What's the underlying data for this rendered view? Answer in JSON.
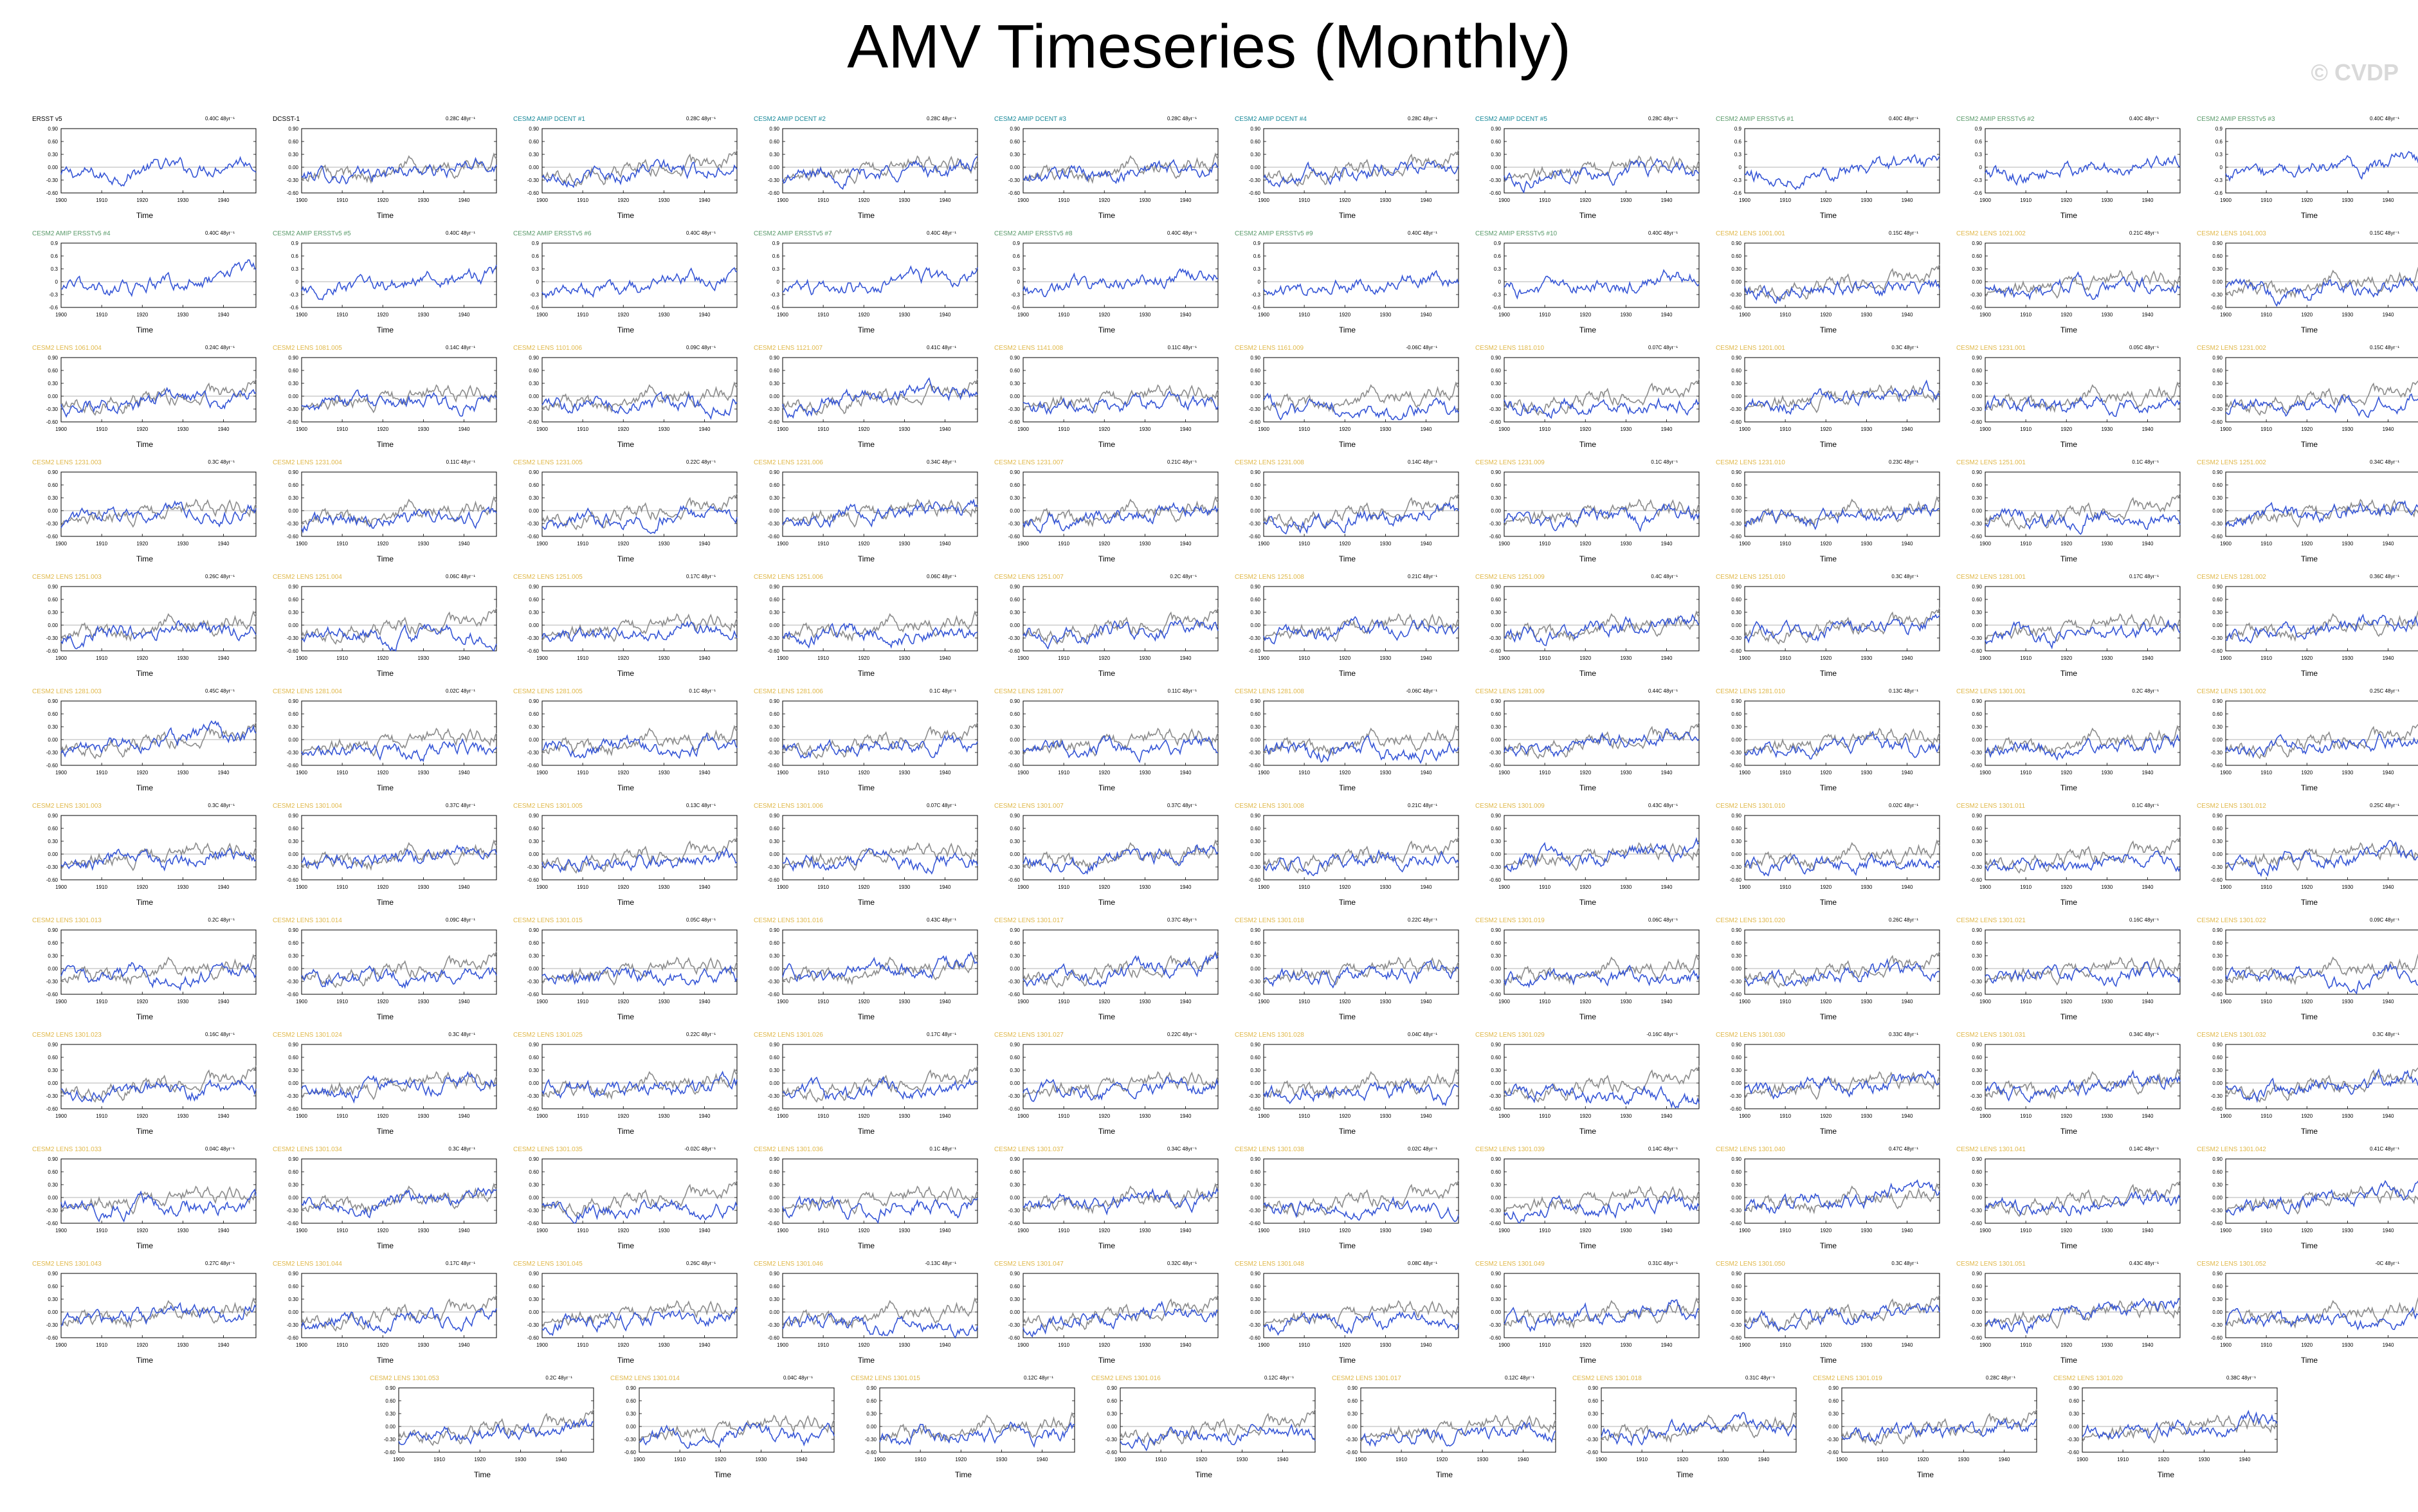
{
  "header": {
    "title": "AMV Timeseries (Monthly)",
    "watermark": "© CVDP"
  },
  "chart_data": {
    "type": "line",
    "xlabel": "Time",
    "x_ticks": [
      "1900",
      "1910",
      "1920",
      "1930",
      "1940"
    ],
    "xlim": [
      1900,
      1948
    ],
    "ylim": [
      -0.6,
      0.9
    ],
    "y_ticks": [
      "0.90",
      "0.60",
      "0.30",
      "0.00",
      "-0.30",
      "-0.60"
    ],
    "y_ticks_alt": [
      "0.9",
      "0.6",
      "0.3",
      "0",
      "-0.3",
      "-0.6"
    ],
    "series_colors": {
      "model": "#3656d6",
      "observed": "#8c8c8c",
      "zero_line": "#9a9a9a"
    },
    "title_colors": {
      "obs": "#000000",
      "dcent": "#1a8a9a",
      "ersst": "#5a9a6a",
      "lens": "#e0b84a"
    },
    "panels": [
      {
        "title": "ERSST v5",
        "stat": "0.40C 48yr⁻¹",
        "kind": "obs",
        "trend": 0.4,
        "overlay": false
      },
      {
        "title": "DCSST-1",
        "stat": "0.28C 48yr⁻¹",
        "kind": "obs",
        "trend": 0.28,
        "overlay": true
      },
      {
        "title": "CESM2 AMIP DCENT #1",
        "stat": "0.28C 48yr⁻¹",
        "kind": "dcent",
        "trend": 0.28,
        "overlay": true
      },
      {
        "title": "CESM2 AMIP DCENT #2",
        "stat": "0.28C 48yr⁻¹",
        "kind": "dcent",
        "trend": 0.28,
        "overlay": true
      },
      {
        "title": "CESM2 AMIP DCENT #3",
        "stat": "0.28C 48yr⁻¹",
        "kind": "dcent",
        "trend": 0.28,
        "overlay": true
      },
      {
        "title": "CESM2 AMIP DCENT #4",
        "stat": "0.28C 48yr⁻¹",
        "kind": "dcent",
        "trend": 0.28,
        "overlay": true
      },
      {
        "title": "CESM2 AMIP DCENT #5",
        "stat": "0.28C 48yr⁻¹",
        "kind": "dcent",
        "trend": 0.28,
        "overlay": true
      },
      {
        "title": "CESM2 AMIP ERSSTv5 #1",
        "stat": "0.40C 48yr⁻¹",
        "kind": "ersst",
        "trend": 0.4,
        "overlay": false
      },
      {
        "title": "CESM2 AMIP ERSSTv5 #2",
        "stat": "0.40C 48yr⁻¹",
        "kind": "ersst",
        "trend": 0.4,
        "overlay": false
      },
      {
        "title": "CESM2 AMIP ERSSTv5 #3",
        "stat": "0.40C 48yr⁻¹",
        "kind": "ersst",
        "trend": 0.4,
        "overlay": false
      },
      {
        "title": "CESM2 AMIP ERSSTv5 #4",
        "stat": "0.40C 48yr⁻¹",
        "kind": "ersst",
        "trend": 0.4,
        "overlay": false
      },
      {
        "title": "CESM2 AMIP ERSSTv5 #5",
        "stat": "0.40C 48yr⁻¹",
        "kind": "ersst",
        "trend": 0.4,
        "overlay": false
      },
      {
        "title": "CESM2 AMIP ERSSTv5 #6",
        "stat": "0.40C 48yr⁻¹",
        "kind": "ersst",
        "trend": 0.4,
        "overlay": false
      },
      {
        "title": "CESM2 AMIP ERSSTv5 #7",
        "stat": "0.40C 48yr⁻¹",
        "kind": "ersst",
        "trend": 0.4,
        "overlay": false
      },
      {
        "title": "CESM2 AMIP ERSSTv5 #8",
        "stat": "0.40C 48yr⁻¹",
        "kind": "ersst",
        "trend": 0.4,
        "overlay": false
      },
      {
        "title": "CESM2 AMIP ERSSTv5 #9",
        "stat": "0.40C 48yr⁻¹",
        "kind": "ersst",
        "trend": 0.4,
        "overlay": false
      },
      {
        "title": "CESM2 AMIP ERSSTv5 #10",
        "stat": "0.40C 48yr⁻¹",
        "kind": "ersst",
        "trend": 0.4,
        "overlay": false
      },
      {
        "title": "CESM2 LENS 1001.001",
        "stat": "0.15C 48yr⁻¹",
        "kind": "lens",
        "trend": 0.15,
        "overlay": true
      },
      {
        "title": "CESM2 LENS 1021.002",
        "stat": "0.21C 48yr⁻¹",
        "kind": "lens",
        "trend": 0.21,
        "overlay": true
      },
      {
        "title": "CESM2 LENS 1041.003",
        "stat": "0.15C 48yr⁻¹",
        "kind": "lens",
        "trend": 0.15,
        "overlay": true
      },
      {
        "title": "CESM2 LENS 1061.004",
        "stat": "0.24C 48yr⁻¹",
        "kind": "lens",
        "trend": 0.24,
        "overlay": true
      },
      {
        "title": "CESM2 LENS 1081.005",
        "stat": "0.14C 48yr⁻¹",
        "kind": "lens",
        "trend": 0.14,
        "overlay": true
      },
      {
        "title": "CESM2 LENS 1101.006",
        "stat": "0.09C 48yr⁻¹",
        "kind": "lens",
        "trend": 0.09,
        "overlay": true
      },
      {
        "title": "CESM2 LENS 1121.007",
        "stat": "0.41C 48yr⁻¹",
        "kind": "lens",
        "trend": 0.41,
        "overlay": true
      },
      {
        "title": "CESM2 LENS 1141.008",
        "stat": "0.11C 48yr⁻¹",
        "kind": "lens",
        "trend": 0.11,
        "overlay": true
      },
      {
        "title": "CESM2 LENS 1161.009",
        "stat": "-0.06C 48yr⁻¹",
        "kind": "lens",
        "trend": -0.06,
        "overlay": true
      },
      {
        "title": "CESM2 LENS 1181.010",
        "stat": "0.07C 48yr⁻¹",
        "kind": "lens",
        "trend": 0.07,
        "overlay": true
      },
      {
        "title": "CESM2 LENS 1201.001",
        "stat": "0.3C 48yr⁻¹",
        "kind": "lens",
        "trend": 0.3,
        "overlay": true
      },
      {
        "title": "CESM2 LENS 1231.001",
        "stat": "0.05C 48yr⁻¹",
        "kind": "lens",
        "trend": 0.05,
        "overlay": true
      },
      {
        "title": "CESM2 LENS 1231.002",
        "stat": "0.15C 48yr⁻¹",
        "kind": "lens",
        "trend": 0.15,
        "overlay": true
      },
      {
        "title": "CESM2 LENS 1231.003",
        "stat": "0.3C 48yr⁻¹",
        "kind": "lens",
        "trend": 0.3,
        "overlay": true
      },
      {
        "title": "CESM2 LENS 1231.004",
        "stat": "0.11C 48yr⁻¹",
        "kind": "lens",
        "trend": 0.11,
        "overlay": true
      },
      {
        "title": "CESM2 LENS 1231.005",
        "stat": "0.22C 48yr⁻¹",
        "kind": "lens",
        "trend": 0.22,
        "overlay": true
      },
      {
        "title": "CESM2 LENS 1231.006",
        "stat": "0.34C 48yr⁻¹",
        "kind": "lens",
        "trend": 0.34,
        "overlay": true
      },
      {
        "title": "CESM2 LENS 1231.007",
        "stat": "0.21C 48yr⁻¹",
        "kind": "lens",
        "trend": 0.21,
        "overlay": true
      },
      {
        "title": "CESM2 LENS 1231.008",
        "stat": "0.14C 48yr⁻¹",
        "kind": "lens",
        "trend": 0.14,
        "overlay": true
      },
      {
        "title": "CESM2 LENS 1231.009",
        "stat": "0.1C 48yr⁻¹",
        "kind": "lens",
        "trend": 0.1,
        "overlay": true
      },
      {
        "title": "CESM2 LENS 1231.010",
        "stat": "0.23C 48yr⁻¹",
        "kind": "lens",
        "trend": 0.23,
        "overlay": true
      },
      {
        "title": "CESM2 LENS 1251.001",
        "stat": "0.1C 48yr⁻¹",
        "kind": "lens",
        "trend": 0.1,
        "overlay": true
      },
      {
        "title": "CESM2 LENS 1251.002",
        "stat": "0.34C 48yr⁻¹",
        "kind": "lens",
        "trend": 0.34,
        "overlay": true
      },
      {
        "title": "CESM2 LENS 1251.003",
        "stat": "0.26C 48yr⁻¹",
        "kind": "lens",
        "trend": 0.26,
        "overlay": true
      },
      {
        "title": "CESM2 LENS 1251.004",
        "stat": "0.06C 48yr⁻¹",
        "kind": "lens",
        "trend": 0.06,
        "overlay": true
      },
      {
        "title": "CESM2 LENS 1251.005",
        "stat": "0.17C 48yr⁻¹",
        "kind": "lens",
        "trend": 0.17,
        "overlay": true
      },
      {
        "title": "CESM2 LENS 1251.006",
        "stat": "0.06C 48yr⁻¹",
        "kind": "lens",
        "trend": 0.06,
        "overlay": true
      },
      {
        "title": "CESM2 LENS 1251.007",
        "stat": "0.2C 48yr⁻¹",
        "kind": "lens",
        "trend": 0.2,
        "overlay": true
      },
      {
        "title": "CESM2 LENS 1251.008",
        "stat": "0.21C 48yr⁻¹",
        "kind": "lens",
        "trend": 0.21,
        "overlay": true
      },
      {
        "title": "CESM2 LENS 1251.009",
        "stat": "0.4C 48yr⁻¹",
        "kind": "lens",
        "trend": 0.4,
        "overlay": true
      },
      {
        "title": "CESM2 LENS 1251.010",
        "stat": "0.3C 48yr⁻¹",
        "kind": "lens",
        "trend": 0.3,
        "overlay": true
      },
      {
        "title": "CESM2 LENS 1281.001",
        "stat": "0.17C 48yr⁻¹",
        "kind": "lens",
        "trend": 0.17,
        "overlay": true
      },
      {
        "title": "CESM2 LENS 1281.002",
        "stat": "0.36C 48yr⁻¹",
        "kind": "lens",
        "trend": 0.36,
        "overlay": true
      },
      {
        "title": "CESM2 LENS 1281.003",
        "stat": "0.45C 48yr⁻¹",
        "kind": "lens",
        "trend": 0.45,
        "overlay": true
      },
      {
        "title": "CESM2 LENS 1281.004",
        "stat": "0.02C 48yr⁻¹",
        "kind": "lens",
        "trend": 0.02,
        "overlay": true
      },
      {
        "title": "CESM2 LENS 1281.005",
        "stat": "0.1C 48yr⁻¹",
        "kind": "lens",
        "trend": 0.1,
        "overlay": true
      },
      {
        "title": "CESM2 LENS 1281.006",
        "stat": "0.1C 48yr⁻¹",
        "kind": "lens",
        "trend": 0.1,
        "overlay": true
      },
      {
        "title": "CESM2 LENS 1281.007",
        "stat": "0.11C 48yr⁻¹",
        "kind": "lens",
        "trend": 0.11,
        "overlay": true
      },
      {
        "title": "CESM2 LENS 1281.008",
        "stat": "-0.06C 48yr⁻¹",
        "kind": "lens",
        "trend": -0.06,
        "overlay": true
      },
      {
        "title": "CESM2 LENS 1281.009",
        "stat": "0.44C 48yr⁻¹",
        "kind": "lens",
        "trend": 0.44,
        "overlay": true
      },
      {
        "title": "CESM2 LENS 1281.010",
        "stat": "0.13C 48yr⁻¹",
        "kind": "lens",
        "trend": 0.13,
        "overlay": true
      },
      {
        "title": "CESM2 LENS 1301.001",
        "stat": "0.2C 48yr⁻¹",
        "kind": "lens",
        "trend": 0.2,
        "overlay": true
      },
      {
        "title": "CESM2 LENS 1301.002",
        "stat": "0.25C 48yr⁻¹",
        "kind": "lens",
        "trend": 0.25,
        "overlay": true
      },
      {
        "title": "CESM2 LENS 1301.003",
        "stat": "0.3C 48yr⁻¹",
        "kind": "lens",
        "trend": 0.3,
        "overlay": true
      },
      {
        "title": "CESM2 LENS 1301.004",
        "stat": "0.37C 48yr⁻¹",
        "kind": "lens",
        "trend": 0.37,
        "overlay": true
      },
      {
        "title": "CESM2 LENS 1301.005",
        "stat": "0.13C 48yr⁻¹",
        "kind": "lens",
        "trend": 0.13,
        "overlay": true
      },
      {
        "title": "CESM2 LENS 1301.006",
        "stat": "0.07C 48yr⁻¹",
        "kind": "lens",
        "trend": 0.07,
        "overlay": true
      },
      {
        "title": "CESM2 LENS 1301.007",
        "stat": "0.37C 48yr⁻¹",
        "kind": "lens",
        "trend": 0.37,
        "overlay": true
      },
      {
        "title": "CESM2 LENS 1301.008",
        "stat": "0.21C 48yr⁻¹",
        "kind": "lens",
        "trend": 0.21,
        "overlay": true
      },
      {
        "title": "CESM2 LENS 1301.009",
        "stat": "0.43C 48yr⁻¹",
        "kind": "lens",
        "trend": 0.43,
        "overlay": true
      },
      {
        "title": "CESM2 LENS 1301.010",
        "stat": "0.02C 48yr⁻¹",
        "kind": "lens",
        "trend": 0.02,
        "overlay": true
      },
      {
        "title": "CESM2 LENS 1301.011",
        "stat": "0.1C 48yr⁻¹",
        "kind": "lens",
        "trend": 0.1,
        "overlay": true
      },
      {
        "title": "CESM2 LENS 1301.012",
        "stat": "0.25C 48yr⁻¹",
        "kind": "lens",
        "trend": 0.25,
        "overlay": true
      },
      {
        "title": "CESM2 LENS 1301.013",
        "stat": "0.2C 48yr⁻¹",
        "kind": "lens",
        "trend": 0.2,
        "overlay": true
      },
      {
        "title": "CESM2 LENS 1301.014",
        "stat": "0.09C 48yr⁻¹",
        "kind": "lens",
        "trend": 0.09,
        "overlay": true
      },
      {
        "title": "CESM2 LENS 1301.015",
        "stat": "0.05C 48yr⁻¹",
        "kind": "lens",
        "trend": 0.05,
        "overlay": true
      },
      {
        "title": "CESM2 LENS 1301.016",
        "stat": "0.43C 48yr⁻¹",
        "kind": "lens",
        "trend": 0.43,
        "overlay": true
      },
      {
        "title": "CESM2 LENS 1301.017",
        "stat": "0.37C 48yr⁻¹",
        "kind": "lens",
        "trend": 0.37,
        "overlay": true
      },
      {
        "title": "CESM2 LENS 1301.018",
        "stat": "0.22C 48yr⁻¹",
        "kind": "lens",
        "trend": 0.22,
        "overlay": true
      },
      {
        "title": "CESM2 LENS 1301.019",
        "stat": "0.06C 48yr⁻¹",
        "kind": "lens",
        "trend": 0.06,
        "overlay": true
      },
      {
        "title": "CESM2 LENS 1301.020",
        "stat": "0.26C 48yr⁻¹",
        "kind": "lens",
        "trend": 0.26,
        "overlay": true
      },
      {
        "title": "CESM2 LENS 1301.021",
        "stat": "0.16C 48yr⁻¹",
        "kind": "lens",
        "trend": 0.16,
        "overlay": true
      },
      {
        "title": "CESM2 LENS 1301.022",
        "stat": "0.09C 48yr⁻¹",
        "kind": "lens",
        "trend": 0.09,
        "overlay": true
      },
      {
        "title": "CESM2 LENS 1301.023",
        "stat": "0.16C 48yr⁻¹",
        "kind": "lens",
        "trend": 0.16,
        "overlay": true
      },
      {
        "title": "CESM2 LENS 1301.024",
        "stat": "0.3C 48yr⁻¹",
        "kind": "lens",
        "trend": 0.3,
        "overlay": true
      },
      {
        "title": "CESM2 LENS 1301.025",
        "stat": "0.22C 48yr⁻¹",
        "kind": "lens",
        "trend": 0.22,
        "overlay": true
      },
      {
        "title": "CESM2 LENS 1301.026",
        "stat": "0.17C 48yr⁻¹",
        "kind": "lens",
        "trend": 0.17,
        "overlay": true
      },
      {
        "title": "CESM2 LENS 1301.027",
        "stat": "0.22C 48yr⁻¹",
        "kind": "lens",
        "trend": 0.22,
        "overlay": true
      },
      {
        "title": "CESM2 LENS 1301.028",
        "stat": "0.04C 48yr⁻¹",
        "kind": "lens",
        "trend": 0.04,
        "overlay": true
      },
      {
        "title": "CESM2 LENS 1301.029",
        "stat": "-0.16C 48yr⁻¹",
        "kind": "lens",
        "trend": -0.16,
        "overlay": true
      },
      {
        "title": "CESM2 LENS 1301.030",
        "stat": "0.33C 48yr⁻¹",
        "kind": "lens",
        "trend": 0.33,
        "overlay": true
      },
      {
        "title": "CESM2 LENS 1301.031",
        "stat": "0.34C 48yr⁻¹",
        "kind": "lens",
        "trend": 0.34,
        "overlay": true
      },
      {
        "title": "CESM2 LENS 1301.032",
        "stat": "0.3C 48yr⁻¹",
        "kind": "lens",
        "trend": 0.3,
        "overlay": true
      },
      {
        "title": "CESM2 LENS 1301.033",
        "stat": "0.04C 48yr⁻¹",
        "kind": "lens",
        "trend": 0.04,
        "overlay": true
      },
      {
        "title": "CESM2 LENS 1301.034",
        "stat": "0.3C 48yr⁻¹",
        "kind": "lens",
        "trend": 0.3,
        "overlay": true
      },
      {
        "title": "CESM2 LENS 1301.035",
        "stat": "-0.02C 48yr⁻¹",
        "kind": "lens",
        "trend": -0.02,
        "overlay": true
      },
      {
        "title": "CESM2 LENS 1301.036",
        "stat": "0.1C 48yr⁻¹",
        "kind": "lens",
        "trend": 0.1,
        "overlay": true
      },
      {
        "title": "CESM2 LENS 1301.037",
        "stat": "0.34C 48yr⁻¹",
        "kind": "lens",
        "trend": 0.34,
        "overlay": true
      },
      {
        "title": "CESM2 LENS 1301.038",
        "stat": "0.02C 48yr⁻¹",
        "kind": "lens",
        "trend": 0.02,
        "overlay": true
      },
      {
        "title": "CESM2 LENS 1301.039",
        "stat": "0.14C 48yr⁻¹",
        "kind": "lens",
        "trend": 0.14,
        "overlay": true
      },
      {
        "title": "CESM2 LENS 1301.040",
        "stat": "0.47C 48yr⁻¹",
        "kind": "lens",
        "trend": 0.47,
        "overlay": true
      },
      {
        "title": "CESM2 LENS 1301.041",
        "stat": "0.14C 48yr⁻¹",
        "kind": "lens",
        "trend": 0.14,
        "overlay": true
      },
      {
        "title": "CESM2 LENS 1301.042",
        "stat": "0.41C 48yr⁻¹",
        "kind": "lens",
        "trend": 0.41,
        "overlay": true
      },
      {
        "title": "CESM2 LENS 1301.043",
        "stat": "0.27C 48yr⁻¹",
        "kind": "lens",
        "trend": 0.27,
        "overlay": true
      },
      {
        "title": "CESM2 LENS 1301.044",
        "stat": "0.17C 48yr⁻¹",
        "kind": "lens",
        "trend": 0.17,
        "overlay": true
      },
      {
        "title": "CESM2 LENS 1301.045",
        "stat": "0.26C 48yr⁻¹",
        "kind": "lens",
        "trend": 0.26,
        "overlay": true
      },
      {
        "title": "CESM2 LENS 1301.046",
        "stat": "-0.13C 48yr⁻¹",
        "kind": "lens",
        "trend": -0.13,
        "overlay": true
      },
      {
        "title": "CESM2 LENS 1301.047",
        "stat": "0.32C 48yr⁻¹",
        "kind": "lens",
        "trend": 0.32,
        "overlay": true
      },
      {
        "title": "CESM2 LENS 1301.048",
        "stat": "0.08C 48yr⁻¹",
        "kind": "lens",
        "trend": 0.08,
        "overlay": true
      },
      {
        "title": "CESM2 LENS 1301.049",
        "stat": "0.31C 48yr⁻¹",
        "kind": "lens",
        "trend": 0.31,
        "overlay": true
      },
      {
        "title": "CESM2 LENS 1301.050",
        "stat": "0.3C 48yr⁻¹",
        "kind": "lens",
        "trend": 0.3,
        "overlay": true
      },
      {
        "title": "CESM2 LENS 1301.051",
        "stat": "0.43C 48yr⁻¹",
        "kind": "lens",
        "trend": 0.43,
        "overlay": true
      },
      {
        "title": "CESM2 LENS 1301.052",
        "stat": "-0C 48yr⁻¹",
        "kind": "lens",
        "trend": 0.0,
        "overlay": true
      },
      {
        "title": "CESM2 LENS 1301.053",
        "stat": "0.2C 48yr⁻¹",
        "kind": "lens",
        "trend": 0.2,
        "overlay": true
      },
      {
        "title": "CESM2 LENS 1301.014",
        "stat": "0.04C 48yr⁻¹",
        "kind": "lens",
        "trend": 0.04,
        "overlay": true
      },
      {
        "title": "CESM2 LENS 1301.015",
        "stat": "0.12C 48yr⁻¹",
        "kind": "lens",
        "trend": 0.12,
        "overlay": true
      },
      {
        "title": "CESM2 LENS 1301.016",
        "stat": "0.12C 48yr⁻¹",
        "kind": "lens",
        "trend": 0.12,
        "overlay": true
      },
      {
        "title": "CESM2 LENS 1301.017",
        "stat": "0.12C 48yr⁻¹",
        "kind": "lens",
        "trend": 0.12,
        "overlay": true
      },
      {
        "title": "CESM2 LENS 1301.018",
        "stat": "0.31C 48yr⁻¹",
        "kind": "lens",
        "trend": 0.31,
        "overlay": true
      },
      {
        "title": "CESM2 LENS 1301.019",
        "stat": "0.28C 48yr⁻¹",
        "kind": "lens",
        "trend": 0.28,
        "overlay": true
      },
      {
        "title": "CESM2 LENS 1301.020",
        "stat": "0.38C 48yr⁻¹",
        "kind": "lens",
        "trend": 0.38,
        "overlay": true
      }
    ]
  }
}
